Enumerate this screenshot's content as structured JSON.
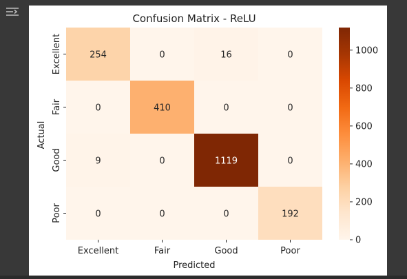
{
  "ui": {
    "output_icon": "output-toggle-icon",
    "background_color": "#383838"
  },
  "chart_data": {
    "type": "heatmap",
    "title": "Confusion Matrix - ReLU",
    "xlabel": "Predicted",
    "ylabel": "Actual",
    "x_categories": [
      "Excellent",
      "Fair",
      "Good",
      "Poor"
    ],
    "y_categories": [
      "Excellent",
      "Fair",
      "Good",
      "Poor"
    ],
    "matrix": [
      [
        254,
        0,
        16,
        0
      ],
      [
        0,
        410,
        0,
        0
      ],
      [
        9,
        0,
        1119,
        0
      ],
      [
        0,
        0,
        0,
        192
      ]
    ],
    "colormap": "Oranges",
    "vmin": 0,
    "vmax": 1119,
    "colorbar_ticks": [
      0,
      200,
      400,
      600,
      800,
      1000
    ],
    "colorbar_tick_labels": [
      "0",
      "200",
      "400",
      "600",
      "800",
      "1000"
    ]
  }
}
